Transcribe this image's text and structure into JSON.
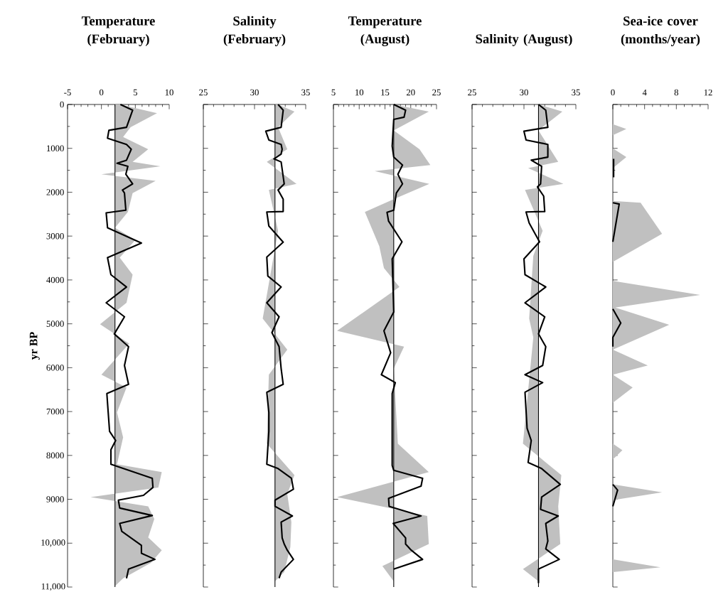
{
  "chart_data": [
    {
      "type": "line",
      "title": "Temperature (February)",
      "ylabel": "yr BP",
      "xlim": [
        -5,
        10
      ],
      "xticks": [
        -5,
        0,
        5,
        10
      ],
      "ylim": [
        11000,
        0
      ],
      "yticks": [
        0,
        1000,
        2000,
        3000,
        4000,
        5000,
        6000,
        7000,
        8000,
        9000,
        {
          "value": 10000,
          "label": "10,000"
        },
        {
          "value": 11000,
          "label": "11,000"
        }
      ],
      "ref_lines": [
        {
          "axis": "x",
          "value": 2
        }
      ],
      "series": [
        {
          "type": "area",
          "color": "#c0c0c0",
          "x": [
            2.7,
            8.2,
            4.3,
            3.2,
            6.9,
            4.6,
            8.7,
            0.0,
            8.0,
            4.6,
            3.9,
            2.0,
            5.0,
            2.7,
            4.6,
            3.7,
            -0.2,
            4.1,
            0.0,
            3.7,
            2.3,
            3.2,
            2.3,
            8.9,
            8.4,
            -1.6,
            6.9,
            7.8,
            6.9,
            8.9,
            7.3,
            3.2,
            2.0
          ],
          "values": [
            0,
            200,
            520,
            740,
            1020,
            1310,
            1410,
            1590,
            1740,
            2020,
            2450,
            2810,
            3090,
            3490,
            3880,
            4520,
            5010,
            5450,
            6160,
            6450,
            7020,
            7590,
            8200,
            8380,
            8730,
            8950,
            9160,
            9450,
            9870,
            10160,
            10450,
            10800,
            10980
          ]
        },
        {
          "color": "#000000",
          "x": [
            2.8,
            4.6,
            3.7,
            1.1,
            0.9,
            3.7,
            4.4,
            3.7,
            2.3,
            3.9,
            3.6,
            4.6,
            3.1,
            3.4,
            3.6,
            0.7,
            0.9,
            5.9,
            0.9,
            1.4,
            3.7,
            0.7,
            3.4,
            1.9,
            4.0,
            3.4,
            4.0,
            0.8,
            1.0,
            1.2,
            2.1,
            1.4,
            1.4,
            7.5,
            7.6,
            6.2,
            2.5,
            2.7,
            7.5,
            2.7,
            3.0,
            5.9,
            5.9,
            7.9,
            4.0,
            3.7
          ],
          "values": [
            0,
            130,
            520,
            590,
            770,
            910,
            1020,
            1270,
            1340,
            1410,
            1590,
            1810,
            1950,
            2020,
            2410,
            2470,
            2810,
            3160,
            3490,
            3880,
            4160,
            4520,
            4840,
            5230,
            5520,
            5950,
            6380,
            6590,
            7020,
            7450,
            7660,
            7870,
            8200,
            8520,
            8730,
            8910,
            9020,
            9200,
            9370,
            9550,
            9730,
            10050,
            10230,
            10370,
            10590,
            10800
          ]
        }
      ]
    },
    {
      "type": "line",
      "title": "Salinity (February)",
      "xlim": [
        25,
        35
      ],
      "xticks": [
        25,
        30,
        35
      ],
      "ylim": [
        11000,
        0
      ],
      "yticks": [
        0,
        1000,
        2000,
        3000,
        4000,
        5000,
        6000,
        7000,
        8000,
        9000,
        10000,
        11000
      ],
      "tick_labels": "x",
      "ref_lines": [
        {
          "axis": "x",
          "value": 32
        }
      ],
      "series": [
        {
          "type": "area",
          "color": "#c0c0c0",
          "x": [
            32.3,
            33.9,
            32.3,
            33.2,
            31.2,
            34.1,
            31.4,
            32.3,
            30.8,
            33.2,
            31.4,
            31.2,
            33.9,
            33.2,
            33.6,
            33.5,
            32.9,
            32.0
          ],
          "values": [
            0,
            160,
            520,
            1020,
            1310,
            1810,
            1950,
            2880,
            4880,
            5590,
            6160,
            7730,
            8450,
            8880,
            9520,
            10090,
            10660,
            10870
          ]
        },
        {
          "color": "#000000",
          "x": [
            32.3,
            32.8,
            32.6,
            31.1,
            31.4,
            32.6,
            32.7,
            32.6,
            31.9,
            32.6,
            32.9,
            32.3,
            32.8,
            32.8,
            31.2,
            31.4,
            32.8,
            31.2,
            31.3,
            32.6,
            31.2,
            32.4,
            31.7,
            32.4,
            32.6,
            32.8,
            31.2,
            31.4,
            31.4,
            31.2,
            32.3,
            33.6,
            33.8,
            32.0,
            32.0,
            33.7,
            32.6,
            32.7,
            32.9,
            33.2,
            33.8,
            32.6,
            32.4
          ],
          "values": [
            0,
            130,
            520,
            610,
            810,
            910,
            1020,
            1130,
            1240,
            1310,
            1810,
            1950,
            2160,
            2440,
            2450,
            2770,
            3140,
            3480,
            3910,
            4160,
            4520,
            4840,
            5200,
            5520,
            6020,
            6380,
            6560,
            7020,
            7450,
            8200,
            8300,
            8520,
            8770,
            9020,
            9160,
            9380,
            9520,
            9880,
            10020,
            10160,
            10370,
            10660,
            10800
          ]
        }
      ]
    },
    {
      "type": "line",
      "title": "Temperature (August)",
      "xlim": [
        5,
        25
      ],
      "xticks": [
        5,
        10,
        15,
        20,
        25
      ],
      "ylim": [
        11000,
        0
      ],
      "yticks": [
        0,
        1000,
        2000,
        3000,
        4000,
        5000,
        6000,
        7000,
        8000,
        9000,
        10000,
        11000
      ],
      "tick_labels": "x",
      "ref_lines": [
        {
          "axis": "x",
          "value": 16.7
        }
      ],
      "series": [
        {
          "type": "area",
          "color": "#c0c0c0",
          "x": [
            16.7,
            23.5,
            16.7,
            21.7,
            23.8,
            13.0,
            23.6,
            16.7,
            11.1,
            13.9,
            14.8,
            17.8,
            5.7,
            18.7,
            16.7,
            17.5,
            23.5,
            5.7,
            23.2,
            23.5,
            14.5,
            16.7
          ],
          "values": [
            0,
            160,
            590,
            1020,
            1380,
            1520,
            1810,
            2160,
            2450,
            3230,
            3730,
            4160,
            5160,
            5520,
            6020,
            7730,
            8380,
            8950,
            9380,
            10020,
            10520,
            10870
          ]
        },
        {
          "color": "#000000",
          "x": [
            16.7,
            19.0,
            18.7,
            16.7,
            16.4,
            16.7,
            18.4,
            17.5,
            18.4,
            17.2,
            16.7,
            15.4,
            15.7,
            18.3,
            16.4,
            16.7,
            14.8,
            16.1,
            14.3,
            17.0,
            16.4,
            16.4,
            16.7,
            22.3,
            22.0,
            15.7,
            15.8,
            22.0,
            16.6,
            19.0,
            19.0,
            20.1,
            22.3,
            16.7
          ],
          "values": [
            0,
            130,
            290,
            340,
            950,
            1200,
            1380,
            1590,
            1810,
            2020,
            2410,
            2460,
            2660,
            3130,
            3520,
            4730,
            5160,
            5660,
            6160,
            6340,
            6590,
            8230,
            8340,
            8520,
            8700,
            8980,
            9160,
            9380,
            9550,
            9880,
            10020,
            10160,
            10370,
            10590
          ]
        }
      ]
    },
    {
      "type": "line",
      "title": "Salinity (August)",
      "xlim": [
        25,
        35
      ],
      "xticks": [
        25,
        30,
        35
      ],
      "ylim": [
        11000,
        0
      ],
      "yticks": [
        0,
        1000,
        2000,
        3000,
        4000,
        5000,
        6000,
        7000,
        8000,
        9000,
        10000,
        11000
      ],
      "tick_labels": "x",
      "ref_lines": [
        {
          "axis": "x",
          "value": 31.4
        }
      ],
      "series": [
        {
          "type": "area",
          "color": "#c0c0c0",
          "x": [
            31.4,
            33.7,
            31.4,
            33.3,
            30.4,
            33.8,
            30.1,
            31.8,
            30.9,
            30.5,
            30.9,
            29.9,
            33.6,
            33.3,
            33.5,
            29.9,
            31.4
          ],
          "values": [
            0,
            160,
            590,
            1310,
            1450,
            1810,
            1950,
            2880,
            3450,
            4880,
            5310,
            7730,
            8450,
            9160,
            10020,
            10590,
            10870
          ]
        },
        {
          "color": "#000000",
          "x": [
            31.4,
            32.1,
            32.3,
            30.0,
            30.2,
            32.3,
            32.3,
            30.7,
            31.7,
            31.6,
            31.3,
            31.9,
            32.0,
            30.2,
            30.5,
            31.5,
            30.0,
            30.1,
            32.1,
            30.1,
            32.0,
            31.4,
            32.1,
            31.8,
            30.1,
            31.8,
            30.1,
            30.3,
            30.7,
            30.4,
            31.7,
            33.5,
            31.7,
            31.6,
            33.3,
            32.1,
            32.3,
            32.1,
            33.4,
            31.4,
            31.4
          ],
          "values": [
            0,
            130,
            520,
            610,
            810,
            910,
            1200,
            1270,
            1410,
            1810,
            1880,
            2090,
            2440,
            2450,
            2700,
            3130,
            3520,
            3880,
            4160,
            4520,
            4840,
            5230,
            5520,
            5950,
            6160,
            6340,
            6560,
            7380,
            7660,
            8160,
            8300,
            8660,
            8950,
            9230,
            9380,
            9550,
            9950,
            10130,
            10370,
            10590,
            10910
          ]
        }
      ]
    },
    {
      "type": "line",
      "title": "Sea-ice cover (months/year)",
      "xlim": [
        0,
        12
      ],
      "xticks": [
        0,
        4,
        8,
        12
      ],
      "ylim": [
        11000,
        0
      ],
      "yticks": [
        0,
        1000,
        2000,
        3000,
        4000,
        5000,
        6000,
        7000,
        8000,
        9000,
        10000,
        11000
      ],
      "tick_labels": "x",
      "series": [
        {
          "type": "area",
          "color": "#c0c0c0",
          "x": [
            0,
            0,
            1.7,
            0,
            0,
            1.7,
            0,
            0,
            3.5,
            6.2,
            0,
            0,
            11.0,
            0.3,
            7.1,
            0,
            4.4,
            0,
            2.5,
            0,
            0,
            1.2,
            0,
            0,
            6.2,
            0,
            0,
            6.0,
            0,
            0
          ],
          "values": [
            0,
            450,
            560,
            700,
            1000,
            1200,
            1450,
            2200,
            2240,
            2950,
            3590,
            4020,
            4340,
            4630,
            5020,
            5590,
            5950,
            6160,
            6450,
            6800,
            7730,
            7880,
            8090,
            8660,
            8840,
            9020,
            10370,
            10550,
            10660,
            11000
          ]
        },
        {
          "color": "#000000",
          "x": [
            0.1,
            0.1,
            null,
            0,
            0.8,
            0,
            null,
            0,
            1.0,
            0,
            0,
            null,
            0,
            0.6,
            0
          ],
          "values": [
            1240,
            1660,
            null,
            2240,
            2270,
            3130,
            null,
            4660,
            4980,
            5310,
            5520,
            null,
            8660,
            8790,
            9160
          ]
        }
      ]
    }
  ]
}
